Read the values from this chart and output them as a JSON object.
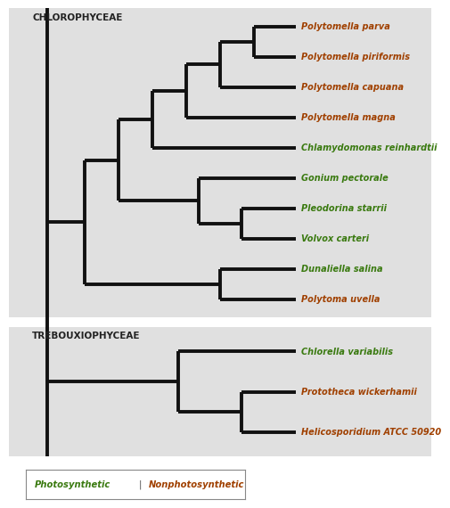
{
  "title_top": "CHLOROPHYCEAE",
  "title_bottom": "TREBOUXIOPHYCEAE",
  "bg_color": "#e0e0e0",
  "white_bg": "#ffffff",
  "line_color": "#111111",
  "line_width": 2.8,
  "chloro_taxa": [
    {
      "name": "Polytomella parva",
      "color": "#a04000",
      "y": 10
    },
    {
      "name": "Polytomella piriformis",
      "color": "#a04000",
      "y": 9
    },
    {
      "name": "Polytomella capuana",
      "color": "#a04000",
      "y": 8
    },
    {
      "name": "Polytomella magna",
      "color": "#a04000",
      "y": 7
    },
    {
      "name": "Chlamydomonas reinhardtii",
      "color": "#3a7a10",
      "y": 6
    },
    {
      "name": "Gonium pectorale",
      "color": "#3a7a10",
      "y": 5
    },
    {
      "name": "Pleodorina starrii",
      "color": "#3a7a10",
      "y": 4
    },
    {
      "name": "Volvox carteri",
      "color": "#3a7a10",
      "y": 3
    },
    {
      "name": "Dunaliella salina",
      "color": "#3a7a10",
      "y": 2
    },
    {
      "name": "Polytoma uvella",
      "color": "#a04000",
      "y": 1
    }
  ],
  "trebo_taxa": [
    {
      "name": "Chlorella variabilis",
      "color": "#3a7a10",
      "y": 3
    },
    {
      "name": "Prototheca wickerhamii",
      "color": "#a04000",
      "y": 2
    },
    {
      "name": "Helicosporidium ATCC 50920",
      "color": "#a04000",
      "y": 1
    }
  ],
  "legend_photosynthetic_color": "#3a7a10",
  "legend_nonphotosynthetic_color": "#a04000",
  "legend_label_photo": "Photosynthetic",
  "legend_label_nonphoto": "Nonphotosynthetic",
  "legend_separator": " | "
}
